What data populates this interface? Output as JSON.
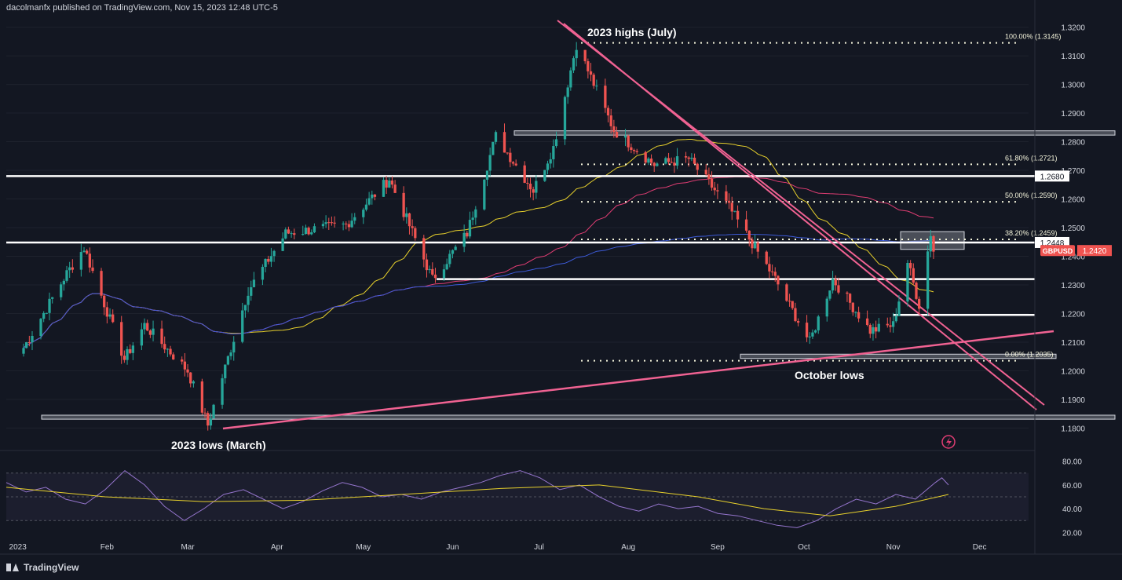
{
  "header": {
    "publisher": "dacolmanfx published on TradingView.com, Nov 15, 2023 12:48 UTC-5"
  },
  "footer": {
    "brand": "TradingView"
  },
  "colors": {
    "bg": "#131722",
    "up": "#26a69a",
    "down": "#ef5350",
    "sma50": "#e8d12c",
    "sma100": "#e03d73",
    "sma200": "#3d5bd9",
    "trend": "#f06292",
    "rsi": "#9575cd",
    "rsi_ma": "#e8d12c"
  },
  "chart_data": [
    {
      "type": "candlestick",
      "symbol": "GBPUSD",
      "last_price": "1.2420",
      "x_ticks": [
        "2023",
        "Feb",
        "Mar",
        "Apr",
        "May",
        "Jun",
        "Jul",
        "Aug",
        "Sep",
        "Oct",
        "Nov",
        "Dec"
      ],
      "y_ticks": [
        "1.3200",
        "1.3100",
        "1.3000",
        "1.2900",
        "1.2800",
        "1.2700",
        "1.2600",
        "1.2500",
        "1.2400",
        "1.2300",
        "1.2200",
        "1.2100",
        "1.2000",
        "1.1900",
        "1.1800"
      ],
      "ylim": [
        1.176,
        1.324
      ],
      "price_labels": [
        "1.2680",
        "1.2448"
      ],
      "fib_levels": [
        {
          "label": "100.00% (1.3145)",
          "value": 1.3145
        },
        {
          "label": "61.80% (1.2721)",
          "value": 1.2721
        },
        {
          "label": "50.00% (1.2590)",
          "value": 1.259
        },
        {
          "label": "38.20% (1.2459)",
          "value": 1.2459
        },
        {
          "label": "0.00% (1.2035)",
          "value": 1.2035
        }
      ],
      "horizontal_levels": [
        1.268,
        1.2448,
        1.232,
        1.2195
      ],
      "zones": [
        [
          1.2823,
          1.2838
        ],
        [
          1.2043,
          1.2058
        ],
        [
          1.1831,
          1.1845
        ],
        [
          1.2424,
          1.2486
        ]
      ],
      "annotations": [
        "2023 highs (July)",
        "2023 lows (March)",
        "October lows"
      ],
      "series": [
        {
          "name": "price",
          "points": [
            [
              "2023-01-03",
              1.208
            ],
            [
              "2023-01-18",
              1.234
            ],
            [
              "2023-01-24",
              1.243
            ],
            [
              "2023-02-07",
              1.204
            ],
            [
              "2023-02-14",
              1.216
            ],
            [
              "2023-03-01",
              1.2
            ],
            [
              "2023-03-08",
              1.181
            ],
            [
              "2023-03-22",
              1.228
            ],
            [
              "2023-04-04",
              1.248
            ],
            [
              "2023-04-25",
              1.251
            ],
            [
              "2023-05-10",
              1.267
            ],
            [
              "2023-05-25",
              1.232
            ],
            [
              "2023-06-06",
              1.248
            ],
            [
              "2023-06-16",
              1.282
            ],
            [
              "2023-06-29",
              1.263
            ],
            [
              "2023-07-06",
              1.278
            ],
            [
              "2023-07-14",
              1.314
            ],
            [
              "2023-07-27",
              1.284
            ],
            [
              "2023-08-10",
              1.272
            ],
            [
              "2023-08-22",
              1.274
            ],
            [
              "2023-09-05",
              1.257
            ],
            [
              "2023-09-21",
              1.232
            ],
            [
              "2023-10-03",
              1.21
            ],
            [
              "2023-10-11",
              1.232
            ],
            [
              "2023-10-24",
              1.214
            ],
            [
              "2023-11-01",
              1.216
            ],
            [
              "2023-11-06",
              1.238
            ],
            [
              "2023-11-10",
              1.223
            ],
            [
              "2023-11-14",
              1.248
            ],
            [
              "2023-11-15",
              1.242
            ]
          ]
        }
      ]
    },
    {
      "type": "line",
      "name": "RSI",
      "y_ticks": [
        "80.00",
        "60.00",
        "40.00",
        "20.00"
      ],
      "ylim": [
        15,
        85
      ],
      "bands": [
        70,
        50,
        30
      ],
      "series": [
        {
          "name": "rsi",
          "values": [
            [
              0,
              62
            ],
            [
              3,
              54
            ],
            [
              6,
              58
            ],
            [
              9,
              48
            ],
            [
              12,
              44
            ],
            [
              15,
              56
            ],
            [
              18,
              72
            ],
            [
              21,
              60
            ],
            [
              24,
              42
            ],
            [
              27,
              30
            ],
            [
              30,
              40
            ],
            [
              33,
              52
            ],
            [
              36,
              56
            ],
            [
              39,
              48
            ],
            [
              42,
              40
            ],
            [
              45,
              46
            ],
            [
              48,
              55
            ],
            [
              51,
              62
            ],
            [
              54,
              58
            ],
            [
              57,
              50
            ],
            [
              60,
              52
            ],
            [
              63,
              48
            ],
            [
              66,
              54
            ],
            [
              69,
              58
            ],
            [
              72,
              62
            ],
            [
              75,
              68
            ],
            [
              78,
              72
            ],
            [
              81,
              66
            ],
            [
              84,
              56
            ],
            [
              87,
              60
            ],
            [
              90,
              50
            ],
            [
              93,
              42
            ],
            [
              96,
              38
            ],
            [
              99,
              44
            ],
            [
              102,
              40
            ],
            [
              105,
              42
            ],
            [
              108,
              36
            ],
            [
              111,
              34
            ],
            [
              114,
              30
            ],
            [
              117,
              26
            ],
            [
              120,
              24
            ],
            [
              123,
              30
            ],
            [
              126,
              40
            ],
            [
              129,
              48
            ],
            [
              132,
              44
            ],
            [
              135,
              52
            ],
            [
              138,
              48
            ],
            [
              141,
              62
            ],
            [
              142,
              66
            ],
            [
              143,
              60
            ]
          ]
        },
        {
          "name": "rsi_ma",
          "values": [
            [
              0,
              58
            ],
            [
              15,
              50
            ],
            [
              30,
              46
            ],
            [
              45,
              47
            ],
            [
              60,
              52
            ],
            [
              75,
              57
            ],
            [
              90,
              60
            ],
            [
              105,
              50
            ],
            [
              115,
              40
            ],
            [
              125,
              34
            ],
            [
              135,
              42
            ],
            [
              143,
              52
            ]
          ]
        }
      ]
    }
  ]
}
